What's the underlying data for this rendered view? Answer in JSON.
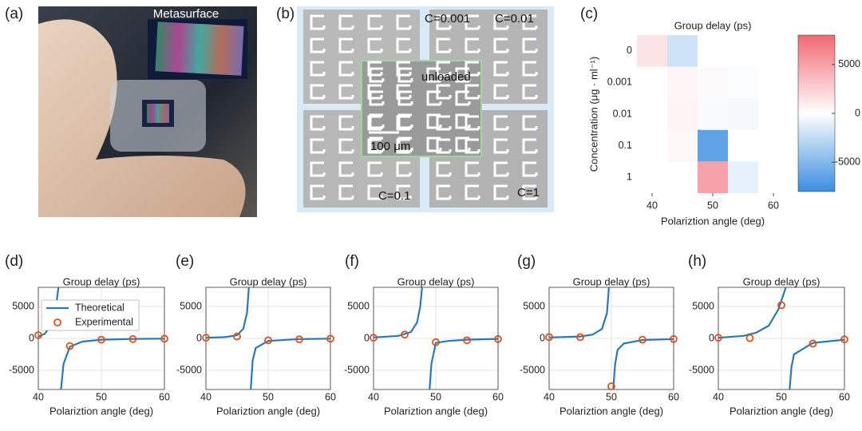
{
  "panel_labels": [
    "(a)",
    "(b)",
    "(c)",
    "(d)",
    "(e)",
    "(f)",
    "(g)",
    "(h)"
  ],
  "photo": {
    "label": "Metasurface"
  },
  "micrograph": {
    "labels": [
      "C=0.001",
      "C=0.01",
      "unloaded",
      "100 μm",
      "C=0.1",
      "C=1"
    ]
  },
  "chart_data": [
    {
      "type": "heatmap",
      "title": "Group delay (ps)",
      "x_label": "Polariztion angle (deg)",
      "y_label": "Concentration (μg · ml⁻¹)",
      "x": [
        40,
        45,
        50,
        55,
        60
      ],
      "xlim": [
        37.5,
        62.5
      ],
      "xticks": [
        40,
        50,
        60
      ],
      "categories": [
        "0",
        "0.001",
        "0.01",
        "0.1",
        "1"
      ],
      "values": [
        [
          1500,
          -2000,
          0,
          0,
          0
        ],
        [
          0,
          500,
          300,
          -200,
          0
        ],
        [
          0,
          600,
          -300,
          -400,
          0
        ],
        [
          0,
          400,
          -6500,
          0,
          0
        ],
        [
          0,
          0,
          5000,
          -1000,
          0
        ]
      ],
      "clim": [
        -8000,
        8000
      ],
      "cticks": [
        5000,
        0,
        -5000
      ],
      "colors": [
        "#3a8ee0",
        "#ffffff",
        "#f06a73"
      ]
    },
    {
      "type": "line",
      "title": "Group delay (ps)",
      "x_label": "Polariztion angle (deg)",
      "xlim": [
        40,
        60
      ],
      "xticks": [
        40,
        50,
        60
      ],
      "ylim": [
        -8000,
        8000
      ],
      "yticks": [
        5000,
        0,
        -5000
      ],
      "grid": true,
      "legend": "upper left",
      "series": [
        {
          "name": "Theoretical",
          "color": "#2a79b5",
          "style": "line",
          "x": [
            40,
            41,
            42,
            42.8,
            43.2,
            null,
            43.6,
            44,
            45,
            47,
            50,
            55,
            60
          ],
          "values": [
            300,
            700,
            2000,
            5000,
            8000,
            null,
            -8000,
            -4000,
            -1300,
            -500,
            -200,
            -80,
            -40
          ]
        },
        {
          "name": "Experimental",
          "color": "#d9541a",
          "style": "marker",
          "x": [
            40,
            45,
            50,
            55,
            60
          ],
          "values": [
            500,
            -1200,
            -200,
            -100,
            -50
          ]
        }
      ]
    },
    {
      "type": "line",
      "title": "Group delay (ps)",
      "x_label": "Polariztion angle (deg)",
      "xlim": [
        40,
        60
      ],
      "xticks": [
        40,
        50,
        60
      ],
      "ylim": [
        -8000,
        8000
      ],
      "yticks": [
        5000,
        0,
        -5000
      ],
      "grid": true,
      "series": [
        {
          "color": "#2a79b5",
          "style": "line",
          "x": [
            40,
            43,
            45,
            46,
            46.6,
            46.9,
            null,
            47.2,
            47.5,
            48,
            50,
            55,
            60
          ],
          "values": [
            100,
            200,
            500,
            1500,
            4000,
            8000,
            null,
            -8000,
            -3500,
            -1500,
            -400,
            -100,
            -40
          ]
        },
        {
          "color": "#d9541a",
          "style": "marker",
          "x": [
            40,
            45,
            50,
            55,
            60
          ],
          "values": [
            100,
            300,
            -300,
            -150,
            -50
          ]
        }
      ]
    },
    {
      "type": "line",
      "title": "Group delay (ps)",
      "x_label": "Polariztion angle (deg)",
      "xlim": [
        40,
        60
      ],
      "xticks": [
        40,
        50,
        60
      ],
      "ylim": [
        -8000,
        8000
      ],
      "yticks": [
        5000,
        0,
        -5000
      ],
      "grid": true,
      "series": [
        {
          "color": "#2a79b5",
          "style": "line",
          "x": [
            40,
            44,
            46,
            47,
            47.5,
            47.8,
            null,
            49,
            49.3,
            50,
            52,
            55,
            60
          ],
          "values": [
            150,
            400,
            1000,
            2500,
            5000,
            8000,
            null,
            -8000,
            -4000,
            -700,
            -400,
            -200,
            -80
          ]
        },
        {
          "color": "#d9541a",
          "style": "marker",
          "x": [
            40,
            45,
            50,
            55,
            60
          ],
          "values": [
            100,
            600,
            -600,
            -300,
            -100
          ]
        }
      ]
    },
    {
      "type": "line",
      "title": "Group delay (ps)",
      "x_label": "Polariztion angle (deg)",
      "xlim": [
        40,
        60
      ],
      "xticks": [
        40,
        50,
        60
      ],
      "ylim": [
        -8000,
        8000
      ],
      "yticks": [
        5000,
        0,
        -5000
      ],
      "grid": true,
      "series": [
        {
          "color": "#2a79b5",
          "style": "line",
          "x": [
            40,
            45,
            47,
            48.5,
            49.3,
            49.6,
            null,
            50.3,
            50.6,
            51,
            52,
            55,
            60
          ],
          "values": [
            150,
            300,
            600,
            1500,
            4000,
            8000,
            null,
            -8000,
            -4000,
            -1800,
            -800,
            -250,
            -100
          ]
        },
        {
          "color": "#d9541a",
          "style": "marker",
          "x": [
            40,
            45,
            50,
            55,
            60
          ],
          "values": [
            200,
            200,
            -7500,
            -200,
            -100
          ]
        }
      ]
    },
    {
      "type": "line",
      "title": "Group delay (ps)",
      "x_label": "Polariztion angle (deg)",
      "xlim": [
        40,
        60
      ],
      "xticks": [
        40,
        50,
        60
      ],
      "ylim": [
        -8000,
        8000
      ],
      "yticks": [
        5000,
        0,
        -5000
      ],
      "grid": true,
      "series": [
        {
          "color": "#2a79b5",
          "style": "line",
          "x": [
            40,
            44,
            46,
            48,
            49.5,
            50.3,
            50.7,
            null,
            51.3,
            51.6,
            52,
            55,
            60
          ],
          "values": [
            100,
            400,
            900,
            2000,
            4500,
            6800,
            8000,
            null,
            -8000,
            -4500,
            -2500,
            -700,
            -200
          ]
        },
        {
          "color": "#d9541a",
          "style": "marker",
          "x": [
            40,
            45,
            50,
            55,
            60
          ],
          "values": [
            100,
            50,
            5200,
            -800,
            -150
          ]
        }
      ]
    }
  ]
}
